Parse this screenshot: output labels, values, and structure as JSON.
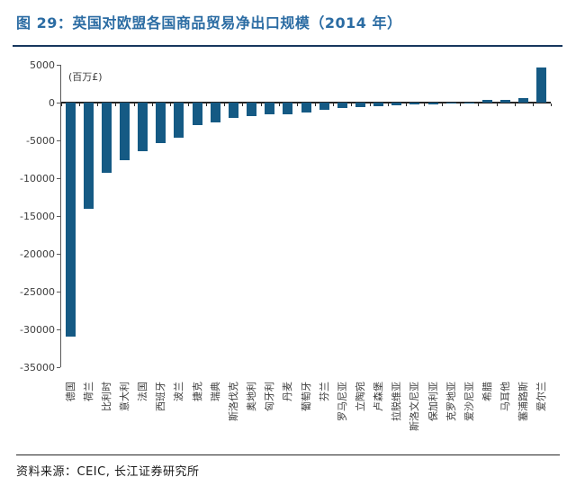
{
  "header": {
    "title": "图 29：英国对欧盟各国商品贸易净出口规模（2014 年）"
  },
  "colors": {
    "title_blue": "#2b6ca3",
    "title_rule_navy": "#17375e",
    "bar_blue": "#155a84",
    "axis_gray": "#595959",
    "line_dark": "#262626"
  },
  "chart_data": {
    "type": "bar",
    "title": "英国对欧盟各国商品贸易净出口规模（2014 年）",
    "unit_label": "(百万£)",
    "categories": [
      "德国",
      "荷兰",
      "比利时",
      "意大利",
      "法国",
      "西班牙",
      "波兰",
      "捷克",
      "瑞典",
      "斯洛伐克",
      "奥地利",
      "匈牙利",
      "丹麦",
      "葡萄牙",
      "芬兰",
      "罗马尼亚",
      "立陶宛",
      "卢森堡",
      "拉脱维亚",
      "斯洛文尼亚",
      "保加利亚",
      "克罗地亚",
      "爱沙尼亚",
      "希腊",
      "马耳他",
      "塞浦路斯",
      "爱尔兰"
    ],
    "values": [
      -31000,
      -14000,
      -9300,
      -7600,
      -6400,
      -5400,
      -4600,
      -3000,
      -2600,
      -2000,
      -1800,
      -1600,
      -1500,
      -1300,
      -900,
      -700,
      -550,
      -450,
      -400,
      -250,
      -200,
      -120,
      -60,
      300,
      300,
      550,
      4600
    ],
    "yticks": [
      5000,
      0,
      -5000,
      -10000,
      -15000,
      -20000,
      -25000,
      -30000,
      -35000
    ],
    "ylim": [
      -35000,
      5000
    ],
    "grid": false,
    "legend": "none"
  },
  "footer": {
    "source": "资料来源：CEIC, 长江证券研究所"
  }
}
